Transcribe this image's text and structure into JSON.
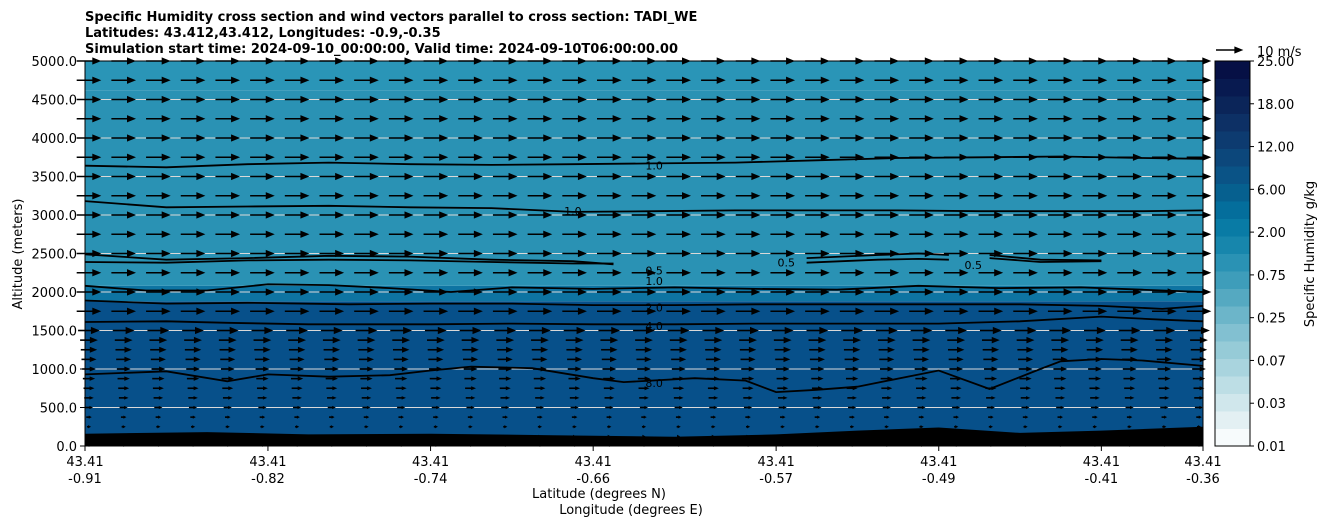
{
  "chart_data": {
    "type": "contour",
    "title_lines": [
      "Specific Humidity cross section and wind vectors parallel to cross section: TADI_WE",
      "Latitudes: 43.412,43.412, Longitudes: -0.9,-0.35",
      "Simulation start time: 2024-09-10_00:00:00, Valid time: 2024-09-10T06:00:00.00"
    ],
    "ylabel": "Altitude (meters)",
    "xlabel_lines": [
      "Latitude (degrees N)",
      "Longitude (degrees E)"
    ],
    "ylim": [
      0,
      5000
    ],
    "y_ticks": [
      {
        "v": 0,
        "label": "0.0"
      },
      {
        "v": 500,
        "label": "500.0"
      },
      {
        "v": 1000,
        "label": "1000.0"
      },
      {
        "v": 1500,
        "label": "1500.0"
      },
      {
        "v": 2000,
        "label": "2000.0"
      },
      {
        "v": 2500,
        "label": "2500.0"
      },
      {
        "v": 3000,
        "label": "3000.0"
      },
      {
        "v": 3500,
        "label": "3500.0"
      },
      {
        "v": 4000,
        "label": "4000.0"
      },
      {
        "v": 4500,
        "label": "4500.0"
      },
      {
        "v": 5000,
        "label": "5000.0"
      }
    ],
    "xlim": [
      -0.91,
      -0.36
    ],
    "x_ticks": [
      {
        "v": -0.91,
        "lat": "43.41",
        "lon": "-0.91"
      },
      {
        "v": -0.82,
        "lat": "43.41",
        "lon": "-0.82"
      },
      {
        "v": -0.74,
        "lat": "43.41",
        "lon": "-0.74"
      },
      {
        "v": -0.66,
        "lat": "43.41",
        "lon": "-0.66"
      },
      {
        "v": -0.57,
        "lat": "43.41",
        "lon": "-0.57"
      },
      {
        "v": -0.49,
        "lat": "43.41",
        "lon": "-0.49"
      },
      {
        "v": -0.41,
        "lat": "43.41",
        "lon": "-0.41"
      },
      {
        "v": -0.36,
        "lat": "43.41",
        "lon": "-0.36"
      }
    ],
    "colorbar": {
      "label": "Specific Humidity g/kg",
      "tick_labels": [
        "0.01",
        "0.03",
        "0.07",
        "0.25",
        "0.75",
        "2.00",
        "6.00",
        "12.00",
        "18.00",
        "25.00"
      ],
      "colors": [
        "#f7fbfc",
        "#e3f0f3",
        "#d0e7ec",
        "#bddee5",
        "#a9d4de",
        "#96cbd7",
        "#82c0d1",
        "#6cb5c9",
        "#55a9c1",
        "#3e9dba",
        "#2a92b4",
        "#1786ac",
        "#097ba5",
        "#046e9c",
        "#06608f",
        "#0a5386",
        "#0c477b",
        "#0d3b70",
        "#0d3065",
        "#0b2559",
        "#081a50",
        "#061045"
      ]
    },
    "shading": [
      {
        "bottom": 0,
        "top": 1880,
        "color": "#07508a"
      },
      {
        "bottom": 1880,
        "top": 2080,
        "color": "#0e74a2"
      },
      {
        "bottom": 2080,
        "top": 4620,
        "color": "#2a92b4"
      },
      {
        "bottom": 4620,
        "top": 5000,
        "color": "#2a95b7"
      }
    ],
    "terrain_m": [
      [
        -0.91,
        160
      ],
      [
        -0.85,
        180
      ],
      [
        -0.8,
        150
      ],
      [
        -0.74,
        160
      ],
      [
        -0.68,
        140
      ],
      [
        -0.62,
        120
      ],
      [
        -0.57,
        150
      ],
      [
        -0.53,
        200
      ],
      [
        -0.49,
        240
      ],
      [
        -0.45,
        170
      ],
      [
        -0.41,
        200
      ],
      [
        -0.36,
        250
      ]
    ],
    "contours": [
      {
        "level": "8.0",
        "points": [
          [
            -0.91,
            930
          ],
          [
            -0.87,
            970
          ],
          [
            -0.84,
            840
          ],
          [
            -0.82,
            930
          ],
          [
            -0.79,
            900
          ],
          [
            -0.76,
            920
          ],
          [
            -0.74,
            980
          ],
          [
            -0.72,
            1030
          ],
          [
            -0.69,
            1010
          ],
          [
            -0.66,
            880
          ],
          [
            -0.645,
            830
          ],
          [
            -0.61,
            880
          ],
          [
            -0.585,
            850
          ],
          [
            -0.57,
            700
          ],
          [
            -0.55,
            730
          ],
          [
            -0.53,
            770
          ],
          [
            -0.49,
            980
          ],
          [
            -0.465,
            740
          ],
          [
            -0.44,
            1000
          ],
          [
            -0.43,
            1100
          ],
          [
            -0.41,
            1130
          ],
          [
            -0.39,
            1110
          ],
          [
            -0.36,
            1040
          ]
        ],
        "label_at": [
          -0.63,
          820
        ]
      },
      {
        "level": "4.0",
        "points": [
          [
            -0.91,
            1610
          ],
          [
            -0.87,
            1620
          ],
          [
            -0.84,
            1600
          ],
          [
            -0.8,
            1580
          ],
          [
            -0.74,
            1580
          ],
          [
            -0.7,
            1590
          ],
          [
            -0.66,
            1580
          ],
          [
            -0.62,
            1580
          ],
          [
            -0.58,
            1590
          ],
          [
            -0.54,
            1590
          ],
          [
            -0.49,
            1590
          ],
          [
            -0.45,
            1620
          ],
          [
            -0.41,
            1680
          ],
          [
            -0.38,
            1640
          ],
          [
            -0.36,
            1620
          ]
        ],
        "label_at": [
          -0.63,
          1560
        ]
      },
      {
        "level": "2.0",
        "points": [
          [
            -0.91,
            1890
          ],
          [
            -0.87,
            1850
          ],
          [
            -0.83,
            1860
          ],
          [
            -0.78,
            1840
          ],
          [
            -0.74,
            1850
          ],
          [
            -0.7,
            1850
          ],
          [
            -0.66,
            1830
          ],
          [
            -0.62,
            1830
          ],
          [
            -0.58,
            1840
          ],
          [
            -0.54,
            1840
          ],
          [
            -0.49,
            1840
          ],
          [
            -0.45,
            1840
          ],
          [
            -0.41,
            1820
          ],
          [
            -0.38,
            1780
          ],
          [
            -0.36,
            1820
          ]
        ],
        "label_at": [
          -0.63,
          1800
        ]
      },
      {
        "level": "1.0",
        "points": [
          [
            -0.91,
            2080
          ],
          [
            -0.88,
            2020
          ],
          [
            -0.85,
            2020
          ],
          [
            -0.82,
            2100
          ],
          [
            -0.79,
            2090
          ],
          [
            -0.76,
            2050
          ],
          [
            -0.73,
            2000
          ],
          [
            -0.7,
            2060
          ],
          [
            -0.66,
            2040
          ],
          [
            -0.62,
            2060
          ],
          [
            -0.58,
            2040
          ],
          [
            -0.54,
            2030
          ],
          [
            -0.5,
            2080
          ],
          [
            -0.46,
            2050
          ],
          [
            -0.42,
            2060
          ],
          [
            -0.39,
            2030
          ],
          [
            -0.36,
            2000
          ]
        ],
        "label_at": [
          -0.63,
          2140
        ]
      },
      {
        "level": "0.5",
        "points": [
          [
            -0.91,
            2490
          ],
          [
            -0.87,
            2420
          ],
          [
            -0.83,
            2440
          ],
          [
            -0.79,
            2470
          ],
          [
            -0.75,
            2460
          ],
          [
            -0.71,
            2420
          ],
          [
            -0.67,
            2400
          ],
          [
            -0.65,
            2360
          ]
        ],
        "label_at": [
          -0.63,
          2280
        ]
      },
      {
        "level": "0.5",
        "points": [
          [
            -0.91,
            2390
          ],
          [
            -0.87,
            2380
          ],
          [
            -0.83,
            2410
          ],
          [
            -0.79,
            2420
          ],
          [
            -0.75,
            2410
          ],
          [
            -0.71,
            2390
          ],
          [
            -0.67,
            2370
          ],
          [
            -0.65,
            2370
          ]
        ],
        "label_at": null
      },
      {
        "level": "0.5",
        "points": [
          [
            -0.555,
            2440
          ],
          [
            -0.52,
            2480
          ],
          [
            -0.5,
            2500
          ],
          [
            -0.485,
            2480
          ]
        ],
        "label_at": [
          -0.565,
          2380
        ]
      },
      {
        "level": "0.5",
        "points": [
          [
            -0.555,
            2380
          ],
          [
            -0.52,
            2420
          ],
          [
            -0.5,
            2430
          ],
          [
            -0.485,
            2420
          ]
        ],
        "label_at": null
      },
      {
        "level": "0.5",
        "points": [
          [
            -0.465,
            2440
          ],
          [
            -0.44,
            2390
          ],
          [
            -0.41,
            2400
          ]
        ],
        "label_at": [
          -0.473,
          2350
        ]
      },
      {
        "level": "0.5",
        "points": [
          [
            -0.465,
            2480
          ],
          [
            -0.44,
            2420
          ],
          [
            -0.41,
            2410
          ]
        ],
        "label_at": null
      },
      {
        "level": "1.0",
        "points": [
          [
            -0.91,
            3180
          ],
          [
            -0.87,
            3100
          ],
          [
            -0.83,
            3110
          ],
          [
            -0.79,
            3120
          ],
          [
            -0.75,
            3100
          ],
          [
            -0.71,
            3090
          ],
          [
            -0.67,
            3040
          ],
          [
            -0.63,
            3050
          ],
          [
            -0.59,
            3060
          ],
          [
            -0.55,
            3060
          ],
          [
            -0.51,
            3060
          ],
          [
            -0.47,
            3050
          ],
          [
            -0.43,
            3050
          ],
          [
            -0.39,
            3050
          ],
          [
            -0.36,
            3060
          ]
        ],
        "label_at": [
          -0.67,
          3050
        ]
      },
      {
        "level": "1.0",
        "points": [
          [
            -0.91,
            3640
          ],
          [
            -0.87,
            3620
          ],
          [
            -0.83,
            3660
          ],
          [
            -0.79,
            3680
          ],
          [
            -0.75,
            3660
          ],
          [
            -0.71,
            3650
          ],
          [
            -0.67,
            3660
          ],
          [
            -0.63,
            3670
          ],
          [
            -0.59,
            3680
          ],
          [
            -0.55,
            3710
          ],
          [
            -0.51,
            3740
          ],
          [
            -0.47,
            3750
          ],
          [
            -0.43,
            3760
          ],
          [
            -0.39,
            3740
          ],
          [
            -0.36,
            3730
          ]
        ],
        "label_at": [
          -0.63,
          3640
        ]
      }
    ],
    "wind": {
      "reference_label": "10 m/s",
      "reference_speed_ms": 10,
      "levels_m": [
        0,
        125,
        250,
        375,
        500,
        625,
        750,
        875,
        1000,
        1125,
        1250,
        1375,
        1500,
        1750,
        2000,
        2250,
        2500,
        2750,
        3000,
        3250,
        3500,
        3750,
        4000,
        4250,
        4500,
        4750,
        5000
      ],
      "speed_ms": [
        0,
        1,
        1.5,
        2,
        3,
        3.5,
        4,
        4.5,
        5,
        5.5,
        6,
        6.5,
        8,
        9,
        9,
        9,
        9,
        9,
        9,
        9,
        9,
        9,
        9,
        9,
        9,
        9,
        9
      ],
      "columns": 33
    },
    "grid": "horizontal only"
  }
}
